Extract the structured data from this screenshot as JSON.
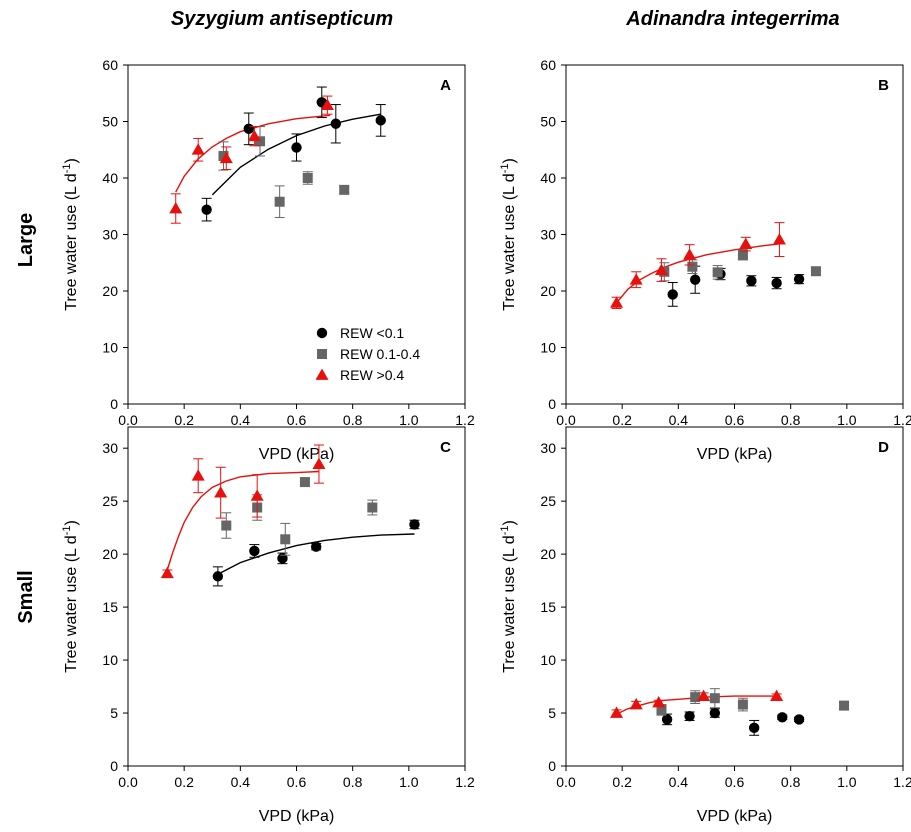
{
  "column_titles": [
    "Syzygium antisepticum",
    "Adinandra integerrima"
  ],
  "row_titles": [
    "Large",
    "Small"
  ],
  "colors": {
    "rew_low": "#000000",
    "rew_mid": "#666666",
    "rew_high": "#e8100c"
  },
  "legend": [
    {
      "label": "REW <0.1",
      "marker": "circle",
      "color": "#000000"
    },
    {
      "label": "REW 0.1-0.4",
      "marker": "square",
      "color": "#666666"
    },
    {
      "label": "REW >0.4",
      "marker": "triangle",
      "color": "#e8100c"
    }
  ],
  "chart_data": [
    {
      "type": "scatter",
      "panel": "A",
      "row": "Large",
      "column": "Syzygium antisepticum",
      "xlabel": "VPD (kPa)",
      "ylabel": "Tree water use (L d-1)",
      "xlim": [
        0,
        1.2
      ],
      "ylim": [
        0,
        60
      ],
      "xticks": [
        "0.0",
        "0.2",
        "0.4",
        "0.6",
        "0.8",
        "1.0",
        "1.2"
      ],
      "yticks": [
        "0",
        "10",
        "20",
        "30",
        "40",
        "50",
        "60"
      ],
      "show_legend": true,
      "series": [
        {
          "name": "REW <0.1",
          "marker": "circle",
          "color": "#000000",
          "points": [
            [
              0.28,
              34.4,
              2.0
            ],
            [
              0.43,
              48.7,
              2.8
            ],
            [
              0.6,
              45.4,
              2.4
            ],
            [
              0.69,
              53.4,
              2.7
            ],
            [
              0.74,
              49.6,
              3.4
            ],
            [
              0.9,
              50.2,
              2.8
            ]
          ],
          "fit": [
            [
              0.3,
              37.0
            ],
            [
              0.4,
              41.9
            ],
            [
              0.5,
              45.1
            ],
            [
              0.6,
              47.5
            ],
            [
              0.7,
              49.2
            ],
            [
              0.8,
              50.4
            ],
            [
              0.9,
              51.3
            ]
          ]
        },
        {
          "name": "REW 0.1-0.4",
          "marker": "square",
          "color": "#666666",
          "points": [
            [
              0.34,
              43.9,
              2.5
            ],
            [
              0.47,
              46.5,
              2.6
            ],
            [
              0.54,
              35.8,
              2.8
            ],
            [
              0.64,
              40.0,
              1.1
            ],
            [
              0.77,
              37.9,
              0.6
            ]
          ],
          "fit": []
        },
        {
          "name": "REW >0.4",
          "marker": "triangle",
          "color": "#e8100c",
          "points": [
            [
              0.17,
              34.6,
              2.6
            ],
            [
              0.25,
              45.0,
              2.0
            ],
            [
              0.35,
              43.5,
              2.0
            ],
            [
              0.45,
              47.4,
              1.7
            ],
            [
              0.71,
              52.9,
              1.6
            ]
          ],
          "fit": [
            [
              0.17,
              37.5
            ],
            [
              0.2,
              40.3
            ],
            [
              0.25,
              43.4
            ],
            [
              0.3,
              45.5
            ],
            [
              0.35,
              47.0
            ],
            [
              0.4,
              48.2
            ],
            [
              0.5,
              49.6
            ],
            [
              0.6,
              50.5
            ],
            [
              0.72,
              51.1
            ]
          ]
        }
      ]
    },
    {
      "type": "scatter",
      "panel": "B",
      "row": "Large",
      "column": "Adinandra integerrima",
      "xlabel": "VPD (kPa)",
      "ylabel": "Tree water use (L d-1)",
      "xlim": [
        0,
        1.2
      ],
      "ylim": [
        0,
        60
      ],
      "xticks": [
        "0.0",
        "0.2",
        "0.4",
        "0.6",
        "0.8",
        "1.0",
        "1.2"
      ],
      "yticks": [
        "0",
        "10",
        "20",
        "30",
        "40",
        "50",
        "60"
      ],
      "show_legend": false,
      "series": [
        {
          "name": "REW <0.1",
          "marker": "circle",
          "color": "#000000",
          "points": [
            [
              0.38,
              19.4,
              2.1
            ],
            [
              0.46,
              22.0,
              2.4
            ],
            [
              0.55,
              23.0,
              1.0
            ],
            [
              0.66,
              21.8,
              0.9
            ],
            [
              0.75,
              21.4,
              1.0
            ],
            [
              0.83,
              22.1,
              0.8
            ]
          ],
          "fit": []
        },
        {
          "name": "REW 0.1-0.4",
          "marker": "square",
          "color": "#666666",
          "points": [
            [
              0.35,
              23.4,
              1.6
            ],
            [
              0.45,
              24.3,
              1.2
            ],
            [
              0.54,
              23.3,
              1.2
            ],
            [
              0.63,
              26.4,
              0.9
            ],
            [
              0.89,
              23.5,
              0.6
            ]
          ],
          "fit": []
        },
        {
          "name": "REW >0.4",
          "marker": "triangle",
          "color": "#e8100c",
          "points": [
            [
              0.18,
              17.9,
              1.0
            ],
            [
              0.25,
              22.0,
              1.4
            ],
            [
              0.34,
              23.7,
              2.0
            ],
            [
              0.44,
              26.4,
              1.8
            ],
            [
              0.64,
              28.3,
              1.2
            ],
            [
              0.76,
              29.1,
              3.0
            ]
          ],
          "fit": [
            [
              0.18,
              17.9
            ],
            [
              0.22,
              20.3
            ],
            [
              0.26,
              21.9
            ],
            [
              0.3,
              23.0
            ],
            [
              0.35,
              24.2
            ],
            [
              0.4,
              25.1
            ],
            [
              0.5,
              26.4
            ],
            [
              0.6,
              27.3
            ],
            [
              0.7,
              28.0
            ],
            [
              0.77,
              28.4
            ]
          ]
        }
      ]
    },
    {
      "type": "scatter",
      "panel": "C",
      "row": "Small",
      "column": "Syzygium antisepticum",
      "xlabel": "VPD (kPa)",
      "ylabel": "Tree water use (L d-1)",
      "xlim": [
        0,
        1.2
      ],
      "ylim": [
        0,
        32
      ],
      "xticks": [
        "0.0",
        "0.2",
        "0.4",
        "0.6",
        "0.8",
        "1.0",
        "1.2"
      ],
      "yticks": [
        "0",
        "5",
        "10",
        "15",
        "20",
        "25",
        "30"
      ],
      "show_legend": false,
      "series": [
        {
          "name": "REW <0.1",
          "marker": "circle",
          "color": "#000000",
          "points": [
            [
              0.32,
              17.9,
              0.9
            ],
            [
              0.45,
              20.3,
              0.6
            ],
            [
              0.55,
              19.6,
              0.5
            ],
            [
              0.67,
              20.7,
              0.3
            ],
            [
              1.02,
              22.8,
              0.4
            ]
          ],
          "fit": [
            [
              0.32,
              18.1
            ],
            [
              0.4,
              19.2
            ],
            [
              0.5,
              20.1
            ],
            [
              0.6,
              20.8
            ],
            [
              0.7,
              21.3
            ],
            [
              0.8,
              21.6
            ],
            [
              0.9,
              21.8
            ],
            [
              1.02,
              21.9
            ]
          ]
        },
        {
          "name": "REW 0.1-0.4",
          "marker": "square",
          "color": "#666666",
          "points": [
            [
              0.35,
              22.7,
              1.2
            ],
            [
              0.46,
              24.4,
              1.2
            ],
            [
              0.56,
              21.4,
              1.5
            ],
            [
              0.63,
              26.8,
              0.4
            ],
            [
              0.87,
              24.4,
              0.7
            ]
          ],
          "fit": []
        },
        {
          "name": "REW >0.4",
          "marker": "triangle",
          "color": "#e8100c",
          "points": [
            [
              0.14,
              18.2,
              0.3
            ],
            [
              0.25,
              27.4,
              1.6
            ],
            [
              0.33,
              25.8,
              2.4
            ],
            [
              0.46,
              25.5,
              2.0
            ],
            [
              0.68,
              28.5,
              1.8
            ]
          ],
          "fit": [
            [
              0.14,
              18.5
            ],
            [
              0.16,
              20.2
            ],
            [
              0.18,
              21.7
            ],
            [
              0.2,
              23.0
            ],
            [
              0.23,
              24.4
            ],
            [
              0.26,
              25.4
            ],
            [
              0.3,
              26.3
            ],
            [
              0.35,
              26.9
            ],
            [
              0.4,
              27.3
            ],
            [
              0.5,
              27.6
            ],
            [
              0.6,
              27.7
            ],
            [
              0.68,
              27.8
            ]
          ]
        }
      ]
    },
    {
      "type": "scatter",
      "panel": "D",
      "row": "Small",
      "column": "Adinandra integerrima",
      "xlabel": "VPD (kPa)",
      "ylabel": "Tree water use (L d-1)",
      "xlim": [
        0,
        1.2
      ],
      "ylim": [
        0,
        32
      ],
      "xticks": [
        "0.0",
        "0.2",
        "0.4",
        "0.6",
        "0.8",
        "1.0",
        "1.2"
      ],
      "yticks": [
        "0",
        "5",
        "10",
        "15",
        "20",
        "25",
        "30"
      ],
      "show_legend": false,
      "series": [
        {
          "name": "REW <0.1",
          "marker": "circle",
          "color": "#000000",
          "points": [
            [
              0.36,
              4.4,
              0.5
            ],
            [
              0.44,
              4.7,
              0.4
            ],
            [
              0.53,
              5.0,
              0.4
            ],
            [
              0.67,
              3.6,
              0.7
            ],
            [
              0.77,
              4.6,
              0.2
            ],
            [
              0.83,
              4.4,
              0.2
            ]
          ],
          "fit": []
        },
        {
          "name": "REW 0.1-0.4",
          "marker": "square",
          "color": "#666666",
          "points": [
            [
              0.34,
              5.3,
              0.5
            ],
            [
              0.46,
              6.5,
              0.6
            ],
            [
              0.53,
              6.4,
              0.9
            ],
            [
              0.63,
              5.8,
              0.6
            ],
            [
              0.99,
              5.7,
              0.3
            ]
          ],
          "fit": []
        },
        {
          "name": "REW >0.4",
          "marker": "triangle",
          "color": "#e8100c",
          "points": [
            [
              0.18,
              5.0,
              0.3
            ],
            [
              0.25,
              5.8,
              0.3
            ],
            [
              0.33,
              6.0,
              0.2
            ],
            [
              0.49,
              6.6,
              0.3
            ],
            [
              0.75,
              6.6,
              0.2
            ]
          ],
          "fit": [
            [
              0.18,
              4.9
            ],
            [
              0.22,
              5.4
            ],
            [
              0.26,
              5.7
            ],
            [
              0.3,
              6.0
            ],
            [
              0.35,
              6.2
            ],
            [
              0.4,
              6.3
            ],
            [
              0.5,
              6.5
            ],
            [
              0.6,
              6.6
            ],
            [
              0.76,
              6.6
            ]
          ]
        }
      ]
    }
  ]
}
